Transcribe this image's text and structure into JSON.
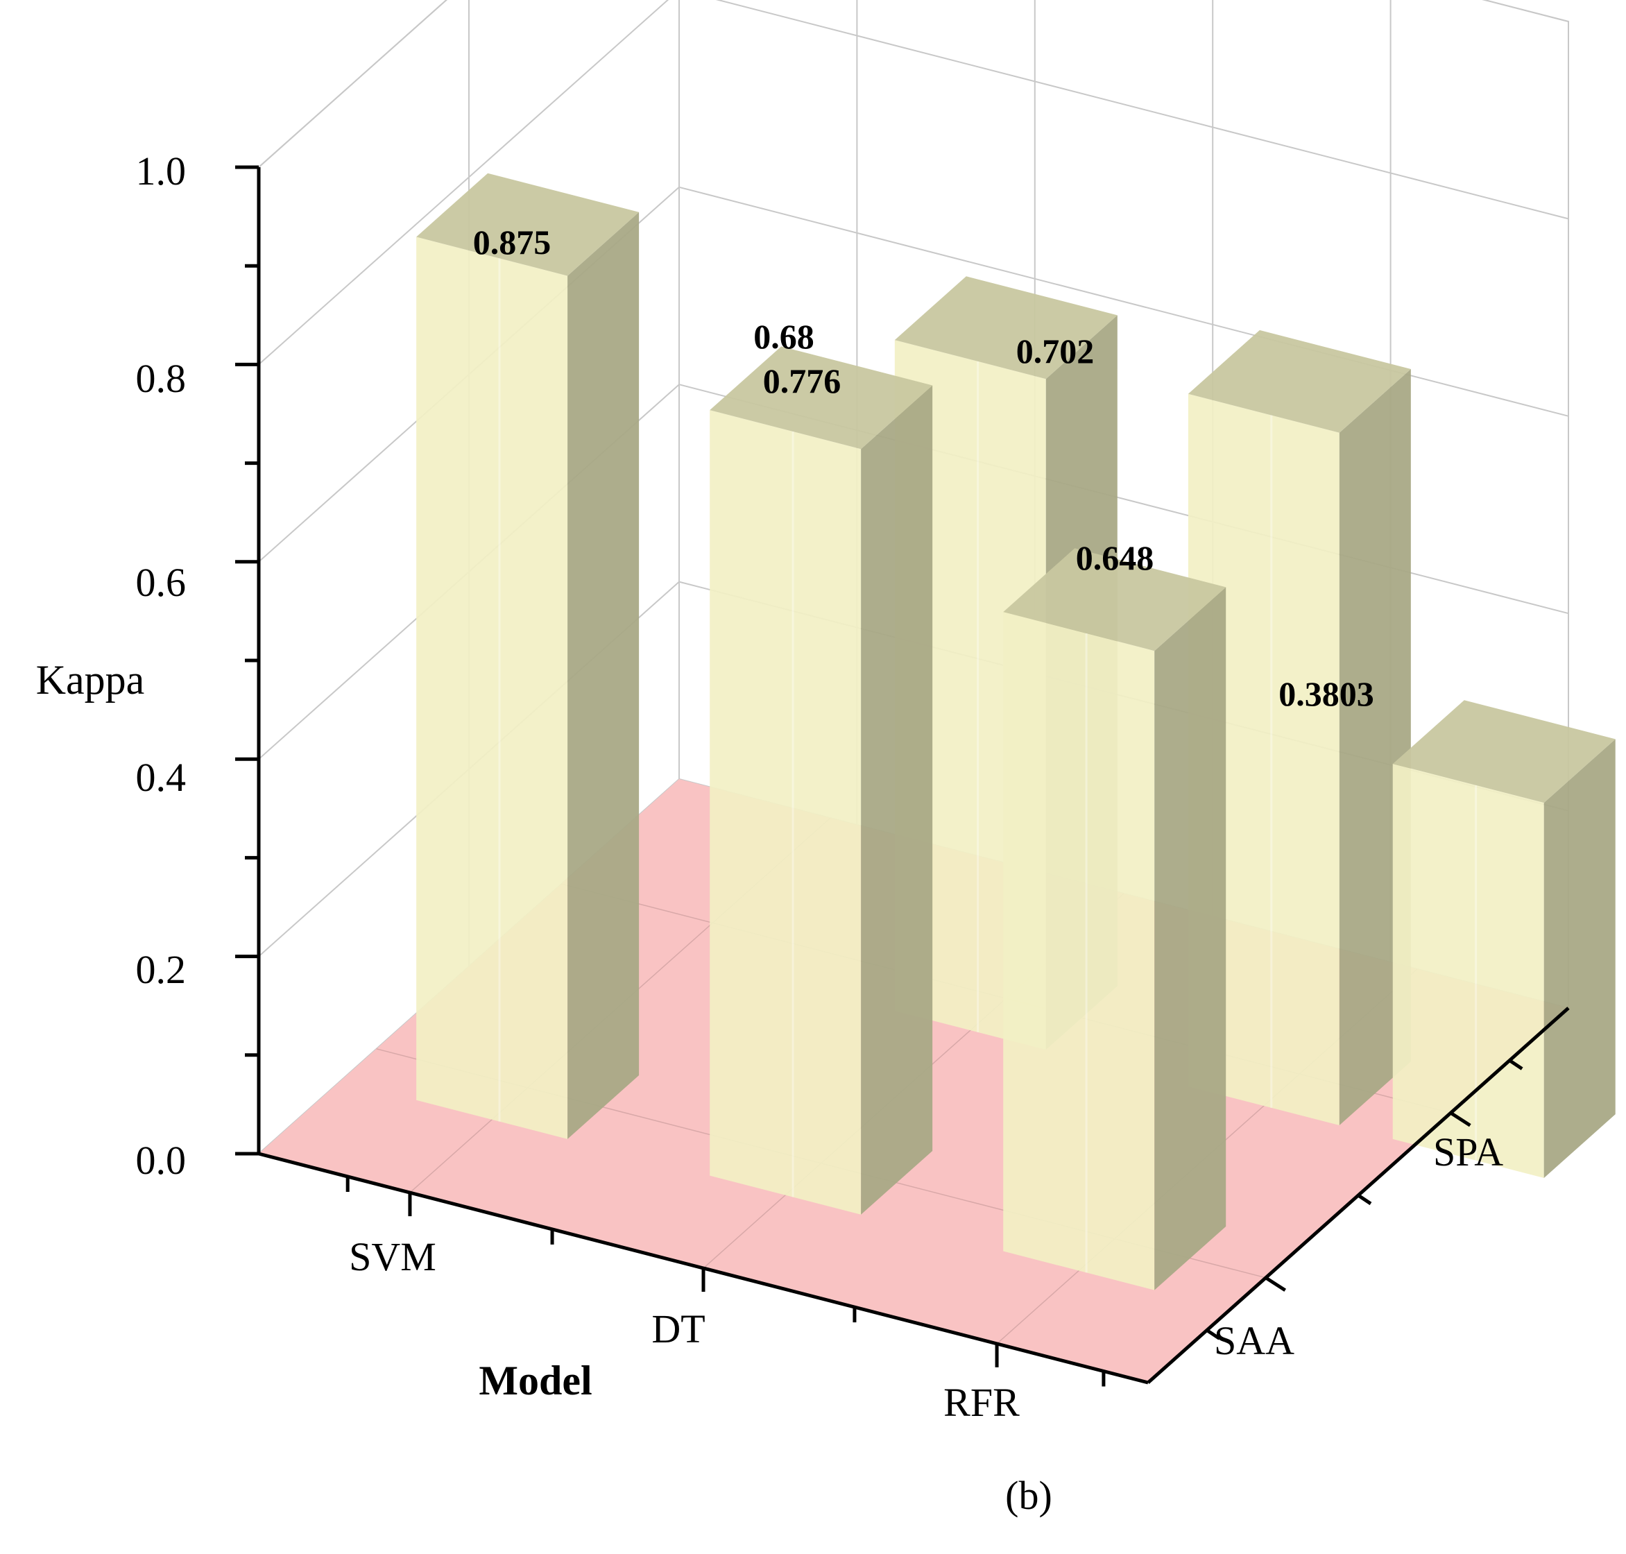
{
  "chart_data": {
    "type": "bar",
    "style": "3d-grouped",
    "categories": [
      "SVM",
      "DT",
      "RFR"
    ],
    "depth_categories": [
      "SAA",
      "SPA"
    ],
    "series": [
      {
        "name": "SAA",
        "values": [
          0.875,
          0.776,
          0.648
        ]
      },
      {
        "name": "SPA",
        "values": [
          null,
          0.68,
          0.3803
        ]
      }
    ],
    "spa_side_values": [
      0.702
    ],
    "data_labels": [
      "0.875",
      "0.68",
      "0.776",
      "0.702",
      "0.648",
      "0.3803"
    ],
    "xlabel": "Model",
    "ylabel": "Kappa",
    "ylim": [
      0,
      1.0
    ],
    "yticks": [
      "0.0",
      "0.2",
      "0.4",
      "0.6",
      "0.8",
      "1.0"
    ],
    "grid": true,
    "legend": "none",
    "panel_label": "(b)",
    "colors": {
      "bar_front": "#f2f0c4",
      "bar_top": "#c8c7a0",
      "bar_side": "#a9a986",
      "floor": "#f9c3c3",
      "grid": "#c8c8c8",
      "axis": "#000000"
    }
  }
}
